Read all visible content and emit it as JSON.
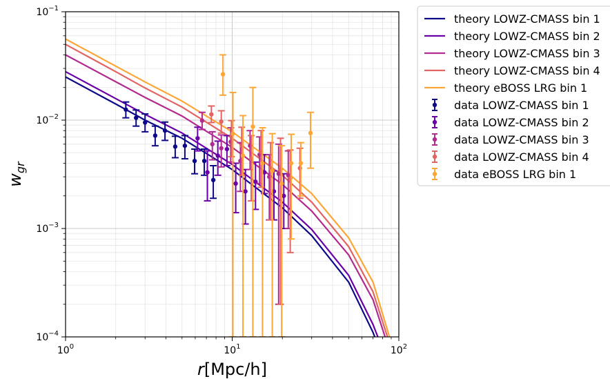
{
  "chart_data": {
    "type": "line",
    "xlabel_main": "r",
    "xlabel_units": "[Mpc/h]",
    "ylabel_main": "w",
    "ylabel_sub": "gr",
    "x_scale": "log",
    "y_scale": "log",
    "xlim": [
      1,
      100
    ],
    "ylim": [
      0.0001,
      0.1
    ],
    "x_ticks": [
      {
        "value": 1,
        "base": "10",
        "exp": "0"
      },
      {
        "value": 10,
        "base": "10",
        "exp": "1"
      },
      {
        "value": 100,
        "base": "10",
        "exp": "2"
      }
    ],
    "y_ticks": [
      {
        "value": 0.0001,
        "base": "10",
        "exp": "−4"
      },
      {
        "value": 0.001,
        "base": "10",
        "exp": "−3"
      },
      {
        "value": 0.01,
        "base": "10",
        "exp": "−2"
      },
      {
        "value": 0.1,
        "base": "10",
        "exp": "−1"
      }
    ],
    "grid": true,
    "legend_position": "outside-right-top",
    "series": [
      {
        "name": "theory LOWZ-CMASS bin 1",
        "kind": "line",
        "color": "#0d0887",
        "x": [
          1,
          2,
          3,
          5,
          10,
          20,
          30,
          50,
          70,
          85
        ],
        "y": [
          0.025,
          0.0141,
          0.01,
          0.0068,
          0.0035,
          0.00155,
          0.00086,
          0.00032,
          0.00011,
          5e-05
        ]
      },
      {
        "name": "theory LOWZ-CMASS bin 2",
        "kind": "line",
        "color": "#6a00a8",
        "x": [
          1,
          2,
          3,
          5,
          10,
          20,
          30,
          50,
          70,
          85
        ],
        "y": [
          0.028,
          0.0158,
          0.0113,
          0.0076,
          0.0039,
          0.00175,
          0.00098,
          0.00037,
          0.00013,
          6e-05
        ]
      },
      {
        "name": "theory LOWZ-CMASS bin 3",
        "kind": "line",
        "color": "#b12a90",
        "x": [
          1,
          2,
          3,
          5,
          10,
          20,
          30,
          50,
          70,
          92
        ],
        "y": [
          0.04,
          0.0226,
          0.0162,
          0.0109,
          0.0056,
          0.00255,
          0.00145,
          0.00057,
          0.00022,
          6e-05
        ]
      },
      {
        "name": "theory LOWZ-CMASS bin 4",
        "kind": "line",
        "color": "#e16462",
        "x": [
          1,
          2,
          3,
          5,
          10,
          20,
          30,
          50,
          70,
          95
        ],
        "y": [
          0.05,
          0.028,
          0.0198,
          0.0132,
          0.0068,
          0.0031,
          0.00175,
          0.00068,
          0.00026,
          6e-05
        ]
      },
      {
        "name": "theory eBOSS LRG bin 1",
        "kind": "line",
        "color": "#fca636",
        "x": [
          1,
          2,
          3,
          5,
          10,
          20,
          30,
          50,
          70,
          97
        ],
        "y": [
          0.056,
          0.0315,
          0.0225,
          0.015,
          0.0078,
          0.0036,
          0.0021,
          0.00082,
          0.00032,
          6e-05
        ]
      },
      {
        "name": "data LOWZ-CMASS bin 1",
        "kind": "errorbar",
        "color": "#0d0887",
        "x": [
          2.3,
          2.65,
          3.0,
          3.45,
          3.95,
          4.55,
          5.2,
          5.95,
          6.8,
          7.7
        ],
        "y": [
          0.0125,
          0.0105,
          0.0095,
          0.0072,
          0.008,
          0.0057,
          0.0058,
          0.0042,
          0.0042,
          0.0028
        ],
        "yerr_low": [
          0.0105,
          0.0088,
          0.0078,
          0.0058,
          0.0065,
          0.0045,
          0.0044,
          0.0032,
          0.0031,
          0.0019
        ],
        "yerr_high": [
          0.0147,
          0.0124,
          0.0114,
          0.0088,
          0.0096,
          0.0071,
          0.0072,
          0.0054,
          0.0054,
          0.0038
        ]
      },
      {
        "name": "data LOWZ-CMASS bin 2",
        "kind": "errorbar",
        "color": "#6a00a8",
        "x": [
          6.2,
          7.1,
          8.2,
          9.3,
          10.5,
          12.0,
          13.8,
          15.6,
          17.8,
          20.4
        ],
        "y": [
          0.0068,
          0.0033,
          0.0047,
          0.0054,
          0.0026,
          0.0022,
          0.0027,
          0.0033,
          0.0022,
          0.002
        ],
        "yerr_low": [
          0.0052,
          0.0018,
          0.0031,
          0.0038,
          0.0014,
          0.0011,
          0.0015,
          0.0021,
          0.0012,
          0.001
        ],
        "yerr_high": [
          0.0086,
          0.0052,
          0.0064,
          0.0072,
          0.004,
          0.0035,
          0.0041,
          0.0048,
          0.0034,
          0.0032
        ]
      },
      {
        "name": "data LOWZ-CMASS bin 3",
        "kind": "errorbar",
        "color": "#b12a90",
        "x": [
          6.6,
          7.6,
          8.6,
          9.8,
          11.2,
          12.8,
          14.6,
          16.7,
          19.0,
          21.7
        ],
        "y": [
          0.0099,
          0.006,
          0.0055,
          0.0063,
          0.0042,
          0.0058,
          0.0048,
          0.003,
          0.0032,
          0.0031
        ],
        "yerr_low": [
          0.0082,
          0.0043,
          0.0037,
          0.0041,
          0.0022,
          0.0035,
          0.0026,
          0.0012,
          0.0002,
          0.001
        ],
        "yerr_high": [
          0.0118,
          0.0078,
          0.0073,
          0.0085,
          0.0062,
          0.008,
          0.007,
          0.0048,
          0.006,
          0.0052
        ]
      },
      {
        "name": "data LOWZ-CMASS bin 4",
        "kind": "errorbar",
        "color": "#e16462",
        "x": [
          7.5,
          8.6,
          9.9,
          11.4,
          13.0,
          14.9,
          17.0,
          19.5,
          22.3,
          25.5
        ],
        "y": [
          0.0113,
          0.0097,
          0.0071,
          0.0058,
          0.0044,
          0.0051,
          0.0036,
          0.0035,
          0.0029,
          0.0036
        ],
        "yerr_low": [
          0.0095,
          0.0076,
          0.0046,
          0.0031,
          0.0018,
          0.0024,
          0.0012,
          0.0002,
          0.0006,
          0.0019
        ],
        "yerr_high": [
          0.0135,
          0.0122,
          0.0099,
          0.0086,
          0.0072,
          0.008,
          0.0062,
          0.0068,
          0.0053,
          0.0055
        ]
      },
      {
        "name": "data eBOSS LRG bin 1",
        "kind": "errorbar",
        "color": "#fca636",
        "x": [
          8.8,
          10.1,
          11.6,
          13.3,
          15.2,
          17.4,
          19.8,
          22.6,
          25.8,
          29.5
        ],
        "y": [
          0.0265,
          0.0075,
          0.0047,
          0.0087,
          0.004,
          0.0034,
          0.0026,
          0.004,
          0.004,
          0.0076
        ],
        "yerr_low": [
          0.017,
          0.0001,
          0.0001,
          0.0001,
          0.0001,
          0.0001,
          0.0001,
          0.0008,
          0.002,
          0.0036
        ],
        "yerr_high": [
          0.04,
          0.018,
          0.011,
          0.02,
          0.0085,
          0.0075,
          0.0058,
          0.0074,
          0.0062,
          0.0118
        ]
      }
    ]
  }
}
